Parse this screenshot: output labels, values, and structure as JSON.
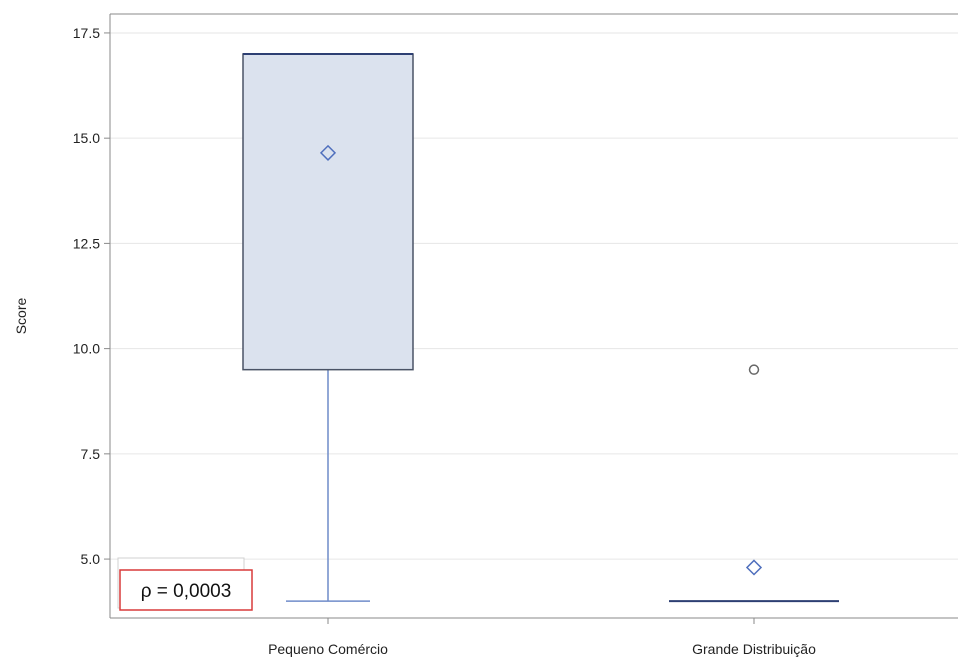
{
  "chart_data": {
    "type": "box",
    "ylabel": "Score",
    "xlabel": "",
    "ylim": [
      3.6,
      17.95
    ],
    "yticks": [
      5.0,
      7.5,
      10.0,
      12.5,
      15.0,
      17.5
    ],
    "ytick_labels": [
      "5.0",
      "7.5",
      "10.0",
      "12.5",
      "15.0",
      "17.5"
    ],
    "grid": true,
    "categories": [
      "Pequeno Comércio",
      "Grande Distribuição"
    ],
    "boxes": [
      {
        "category": "Pequeno Comércio",
        "min": 4.0,
        "q1": 9.5,
        "median": 17.0,
        "q3": 17.0,
        "max": 17.0,
        "mean": 14.65,
        "outliers": []
      },
      {
        "category": "Grande Distribuição",
        "min": 4.0,
        "q1": 4.0,
        "median": 4.0,
        "q3": 4.0,
        "max": 4.0,
        "mean": 4.8,
        "outliers": [
          9.5
        ]
      }
    ],
    "annotation": {
      "text": "ρ = 0,0003",
      "position": "bottom-left"
    },
    "colors": {
      "box_fill": "#dbe2ee",
      "box_edge": "#4a5366",
      "whisker": "#6f8cc9",
      "median": "#2d3f73",
      "mean_marker": "#4f6fbd",
      "outlier": "#666666",
      "grid": "#e6e6e6",
      "axis": "#8a8a8a",
      "annotation_border": "#d93a3a"
    }
  }
}
